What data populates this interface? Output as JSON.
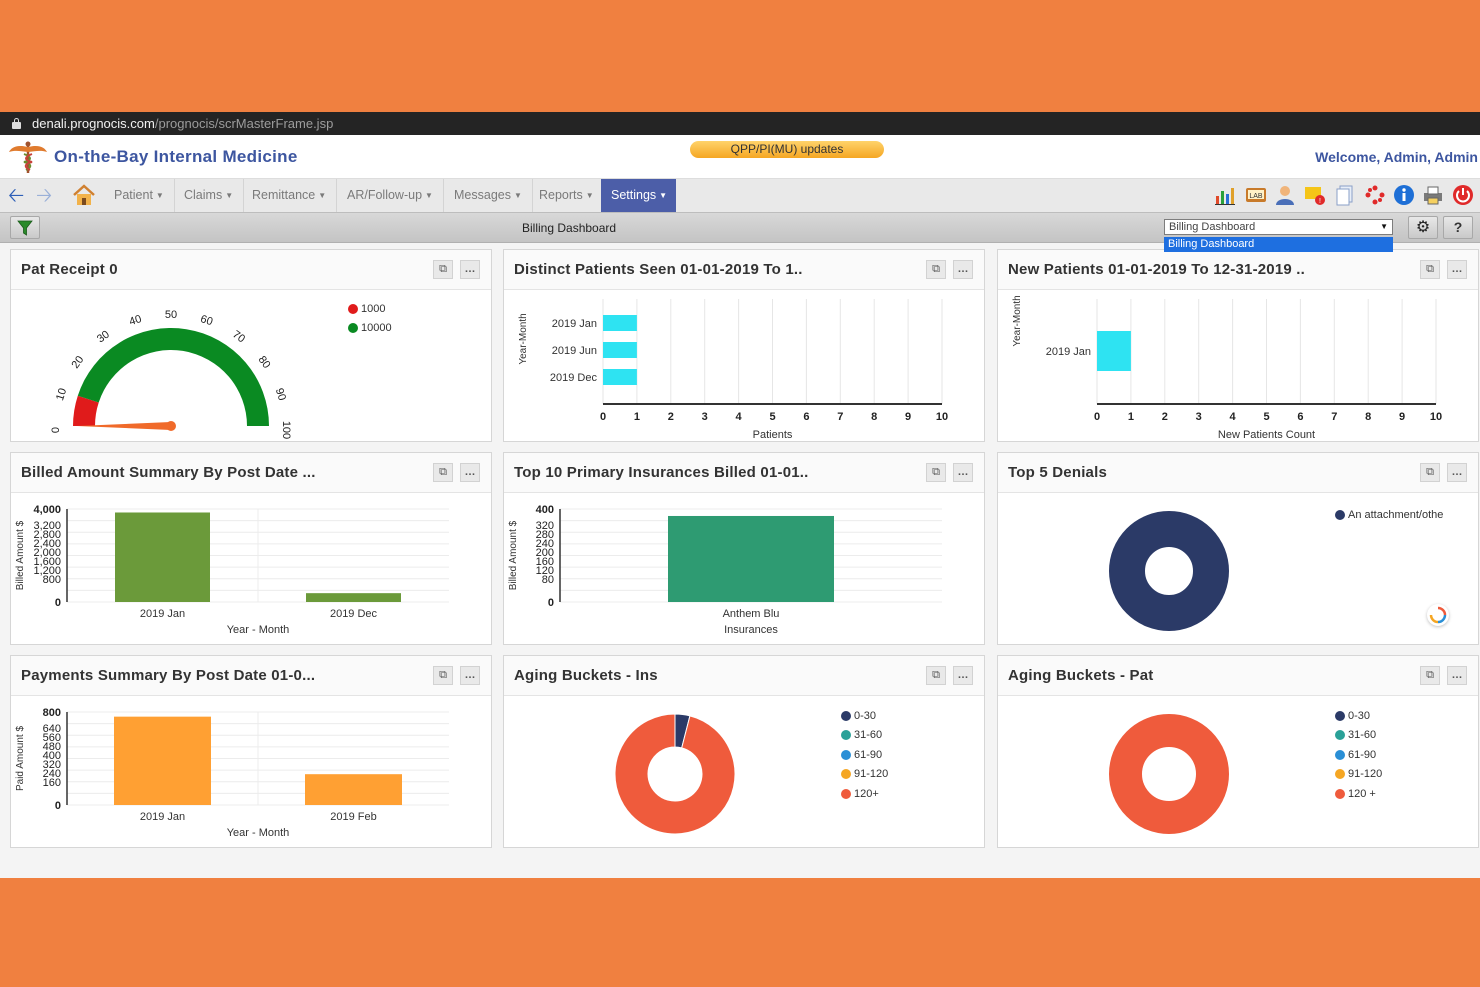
{
  "browser": {
    "url_host": "denali.prognocis.com",
    "url_path": "/prognocis/scrMasterFrame.jsp"
  },
  "header": {
    "practice_name": "On-the-Bay Internal Medicine",
    "banner": "QPP/PI(MU) updates",
    "welcome": "Welcome, Admin, Admin"
  },
  "nav": {
    "menus": [
      "Patient",
      "Claims",
      "Remittance",
      "AR/Follow-up",
      "Messages",
      "Reports",
      "Settings"
    ],
    "active_menu": "Settings",
    "toolbar_icons": [
      "bar-chart-icon",
      "lab-monitor-icon",
      "user-icon",
      "alert-message-icon",
      "documents-icon",
      "dots-icon",
      "info-icon",
      "printer-icon",
      "power-icon"
    ]
  },
  "toolbar": {
    "title": "Billing Dashboard",
    "select_value": "Billing Dashboard",
    "select_option": "Billing Dashboard"
  },
  "panels": [
    {
      "title": "Pat Receipt 0",
      "chart_data": {
        "type": "gauge",
        "value": 0,
        "min": 0,
        "max": 100,
        "ticks": [
          "0",
          "10",
          "20",
          "30",
          "40",
          "50",
          "60",
          "70",
          "80",
          "90",
          "100"
        ],
        "bands": [
          {
            "from": 0,
            "to": 10,
            "color": "#e01b1b"
          },
          {
            "from": 10,
            "to": 100,
            "color": "#0a8a22"
          }
        ],
        "legend": [
          {
            "label": "1000",
            "color": "#e01b1b"
          },
          {
            "label": "10000",
            "color": "#0a8a22"
          }
        ]
      }
    },
    {
      "title": "Distinct Patients Seen 01-01-2019 To 1..",
      "chart_data": {
        "type": "bar",
        "orientation": "horizontal",
        "categories": [
          "2019 Jan",
          "2019 Jun",
          "2019 Dec"
        ],
        "values": [
          1,
          1,
          1
        ],
        "xlabel": "Patients",
        "ylabel": "Year-Month",
        "xlim": [
          0,
          10
        ],
        "xticks": [
          "0",
          "1",
          "2",
          "3",
          "4",
          "5",
          "6",
          "7",
          "8",
          "9",
          "10"
        ],
        "color": "#2ee3f2"
      }
    },
    {
      "title": "New Patients 01-01-2019 To 12-31-2019 ..",
      "chart_data": {
        "type": "bar",
        "orientation": "horizontal",
        "categories": [
          "2019 Jan"
        ],
        "values": [
          1
        ],
        "xlabel": "New Patients Count",
        "ylabel": "Year-Month",
        "xlim": [
          0,
          10
        ],
        "xticks": [
          "0",
          "1",
          "2",
          "3",
          "4",
          "5",
          "6",
          "7",
          "8",
          "9",
          "10"
        ],
        "color": "#2ee3f2"
      }
    },
    {
      "title": "Billed Amount Summary By Post Date ...",
      "chart_data": {
        "type": "bar",
        "categories": [
          "2019 Jan",
          "2019 Dec"
        ],
        "values": [
          3850,
          380
        ],
        "xlabel": "Year - Month",
        "ylabel": "Billed Amount $",
        "ylim": [
          0,
          4000
        ],
        "yticks": [
          "0",
          "800",
          "1,200",
          "1,600",
          "2,000",
          "2,400",
          "2,800",
          "3,200",
          "4,000"
        ],
        "color": "#6b9a3a"
      }
    },
    {
      "title": "Top 10 Primary Insurances Billed 01-01..",
      "chart_data": {
        "type": "bar",
        "categories": [
          "Anthem Blu"
        ],
        "values": [
          370
        ],
        "xlabel": "Insurances",
        "ylabel": "Billed Amount $",
        "ylim": [
          0,
          400
        ],
        "yticks": [
          "0",
          "80",
          "120",
          "160",
          "200",
          "240",
          "280",
          "320",
          "400"
        ],
        "color": "#2e9b72"
      }
    },
    {
      "title": "Top 5 Denials",
      "chart_data": {
        "type": "pie",
        "donut": true,
        "slices": [
          {
            "label": "An attachment/othe",
            "value": 100,
            "color": "#2b3a67"
          }
        ]
      }
    },
    {
      "title": "Payments Summary By Post Date 01-0...",
      "chart_data": {
        "type": "bar",
        "categories": [
          "2019 Jan",
          "2019 Feb"
        ],
        "values": [
          760,
          265
        ],
        "xlabel": "Year - Month",
        "ylabel": "Paid Amount $",
        "ylim": [
          0,
          800
        ],
        "yticks": [
          "0",
          "160",
          "240",
          "320",
          "400",
          "480",
          "560",
          "640",
          "800"
        ],
        "color": "#ffa033"
      }
    },
    {
      "title": "Aging Buckets - Ins",
      "chart_data": {
        "type": "pie",
        "donut": true,
        "slices": [
          {
            "label": "0-30",
            "value": 4,
            "color": "#2b3a67"
          },
          {
            "label": "31-60",
            "value": 0,
            "color": "#2aa198"
          },
          {
            "label": "61-90",
            "value": 0,
            "color": "#2a8fd6"
          },
          {
            "label": "91-120",
            "value": 0,
            "color": "#f5a623"
          },
          {
            "label": "120+",
            "value": 96,
            "color": "#ef5b3c"
          }
        ]
      }
    },
    {
      "title": "Aging Buckets - Pat",
      "chart_data": {
        "type": "pie",
        "donut": true,
        "slices": [
          {
            "label": "0-30",
            "value": 0,
            "color": "#2b3a67"
          },
          {
            "label": "31-60",
            "value": 0,
            "color": "#2aa198"
          },
          {
            "label": "61-90",
            "value": 0,
            "color": "#2a8fd6"
          },
          {
            "label": "91-120",
            "value": 0,
            "color": "#f5a623"
          },
          {
            "label": "120 +",
            "value": 100,
            "color": "#ef5b3c"
          }
        ]
      }
    }
  ]
}
